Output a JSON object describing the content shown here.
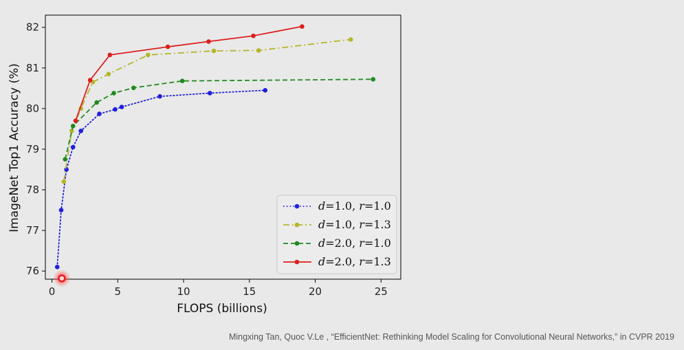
{
  "chart_data": {
    "type": "line",
    "xlabel": "FLOPS (billions)",
    "ylabel": "ImageNet Top1 Accuracy (%)",
    "xlim": [
      -0.5,
      26.5
    ],
    "ylim": [
      75.8,
      82.3
    ],
    "xticks": [
      0,
      5,
      10,
      15,
      20,
      25
    ],
    "yticks": [
      76,
      77,
      78,
      79,
      80,
      81,
      82
    ],
    "legend_position": "bottom-right",
    "grid": false,
    "series": [
      {
        "name": "d=1.0, r=1.0",
        "legend_d": "1.0",
        "legend_r": "1.0",
        "color": "#1f1fdd",
        "line_style": "dotted",
        "points": [
          [
            0.4,
            76.1
          ],
          [
            0.7,
            77.5
          ],
          [
            1.1,
            78.5
          ],
          [
            1.6,
            79.05
          ],
          [
            2.2,
            79.45
          ],
          [
            3.6,
            79.87
          ],
          [
            4.8,
            79.98
          ],
          [
            5.3,
            80.04
          ],
          [
            8.2,
            80.3
          ],
          [
            12.0,
            80.38
          ],
          [
            16.2,
            80.45
          ]
        ]
      },
      {
        "name": "d=1.0, r=1.3",
        "legend_d": "1.0",
        "legend_r": "1.3",
        "color": "#b5b52a",
        "line_style": "dashdot",
        "points": [
          [
            0.9,
            78.2
          ],
          [
            1.5,
            79.45
          ],
          [
            2.2,
            80.0
          ],
          [
            3.1,
            80.65
          ],
          [
            4.3,
            80.85
          ],
          [
            7.3,
            81.32
          ],
          [
            12.3,
            81.42
          ],
          [
            15.7,
            81.43
          ],
          [
            22.7,
            81.7
          ]
        ]
      },
      {
        "name": "d=2.0, r=1.0",
        "legend_d": "2.0",
        "legend_r": "1.0",
        "color": "#1f8a1f",
        "line_style": "dashed",
        "points": [
          [
            1.0,
            78.75
          ],
          [
            1.6,
            79.57
          ],
          [
            3.4,
            80.15
          ],
          [
            4.7,
            80.38
          ],
          [
            6.2,
            80.51
          ],
          [
            9.9,
            80.68
          ],
          [
            24.4,
            80.72
          ]
        ]
      },
      {
        "name": "d=2.0, r=1.3",
        "legend_d": "2.0",
        "legend_r": "1.3",
        "color": "#dd1f1f",
        "line_style": "solid",
        "points": [
          [
            1.8,
            79.7
          ],
          [
            2.9,
            80.7
          ],
          [
            4.4,
            81.32
          ],
          [
            8.8,
            81.52
          ],
          [
            11.9,
            81.65
          ],
          [
            15.3,
            81.79
          ],
          [
            19.0,
            82.02
          ]
        ]
      }
    ]
  },
  "cursor_marker": {
    "x": 0.75,
    "y": 75.82,
    "color": "#e8191e"
  },
  "citation": "Mingxing Tan, Quoc V.Le , “EfficientNet: Rethinking Model Scaling for Convolutional Neural Networks,” in CVPR 2019"
}
